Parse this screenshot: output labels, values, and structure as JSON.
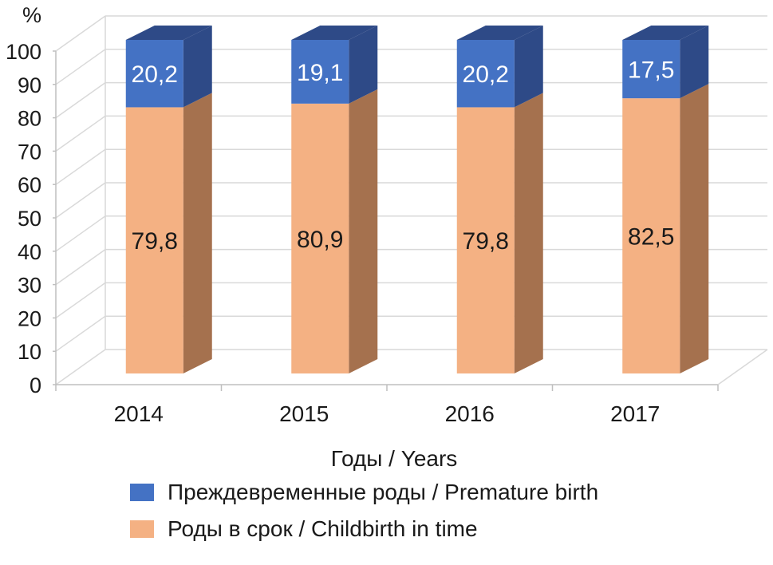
{
  "chart_data": {
    "type": "bar",
    "stacked": true,
    "three_d": true,
    "categories": [
      "2014",
      "2015",
      "2016",
      "2017"
    ],
    "series": [
      {
        "name": "Роды в срок / Childbirth in time",
        "values": [
          79.8,
          80.9,
          79.8,
          82.5
        ],
        "labels": [
          "79,8",
          "80,9",
          "79,8",
          "82,5"
        ],
        "color": "#F4B183",
        "side_color": "#A5714E",
        "label_color": "#1a1a1a"
      },
      {
        "name": "Преждевременные роды / Premature birth",
        "values": [
          20.2,
          19.1,
          20.2,
          17.5
        ],
        "labels": [
          "20,2",
          "19,1",
          "20,2",
          "17,5"
        ],
        "color": "#4472C4",
        "side_color": "#2E4A87",
        "label_color": "#ffffff"
      }
    ],
    "title": "",
    "xlabel": "Годы / Years",
    "ylabel": "%",
    "ylim": [
      0,
      100
    ],
    "yticks": [
      "0",
      "10",
      "20",
      "30",
      "40",
      "50",
      "60",
      "70",
      "80",
      "90",
      "100"
    ],
    "grid": true,
    "legend_position": "bottom"
  }
}
